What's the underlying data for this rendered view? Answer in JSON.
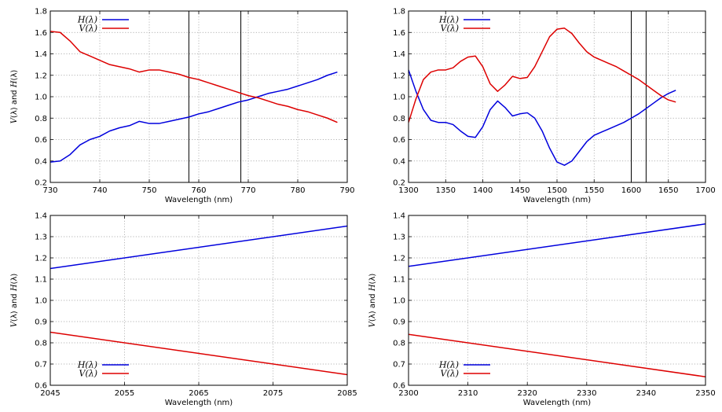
{
  "chart_data": [
    {
      "type": "line",
      "xlabel": "Wavelength (nm)",
      "ylabel": "V(λ) and H(λ)",
      "xlim": [
        730,
        790
      ],
      "ylim": [
        0.2,
        1.8
      ],
      "xticks": [
        "730",
        "740",
        "750",
        "760",
        "770",
        "780",
        "790"
      ],
      "yticks": [
        "0.2",
        "0.4",
        "0.6",
        "0.8",
        "1.0",
        "1.2",
        "1.4",
        "1.6",
        "1.8"
      ],
      "grid": true,
      "legend_position": "top-left",
      "vertical_lines": [
        758,
        768.5
      ],
      "series": [
        {
          "name": "H(λ)",
          "color": "#0000dd",
          "x": [
            730,
            732,
            734,
            736,
            738,
            740,
            742,
            744,
            746,
            748,
            750,
            752,
            754,
            756,
            758,
            760,
            762,
            764,
            766,
            768,
            770,
            772,
            774,
            776,
            778,
            780,
            782,
            784,
            786,
            788
          ],
          "y": [
            0.39,
            0.4,
            0.46,
            0.55,
            0.6,
            0.63,
            0.68,
            0.71,
            0.73,
            0.77,
            0.75,
            0.75,
            0.77,
            0.79,
            0.81,
            0.84,
            0.86,
            0.89,
            0.92,
            0.95,
            0.97,
            1.0,
            1.03,
            1.05,
            1.07,
            1.1,
            1.13,
            1.16,
            1.2,
            1.23
          ]
        },
        {
          "name": "V(λ)",
          "color": "#dd0000",
          "x": [
            730,
            732,
            734,
            736,
            738,
            740,
            742,
            744,
            746,
            748,
            750,
            752,
            754,
            756,
            758,
            760,
            762,
            764,
            766,
            768,
            770,
            772,
            774,
            776,
            778,
            780,
            782,
            784,
            786,
            788
          ],
          "y": [
            1.61,
            1.6,
            1.52,
            1.42,
            1.38,
            1.34,
            1.3,
            1.28,
            1.26,
            1.23,
            1.25,
            1.25,
            1.23,
            1.21,
            1.18,
            1.16,
            1.13,
            1.1,
            1.07,
            1.04,
            1.01,
            0.99,
            0.96,
            0.93,
            0.91,
            0.88,
            0.86,
            0.83,
            0.8,
            0.76
          ]
        }
      ]
    },
    {
      "type": "line",
      "xlabel": "Wavelength (nm)",
      "ylabel": "",
      "xlim": [
        1300,
        1700
      ],
      "ylim": [
        0.2,
        1.8
      ],
      "xticks": [
        "1300",
        "1350",
        "1400",
        "1450",
        "1500",
        "1550",
        "1600",
        "1650",
        "1700"
      ],
      "yticks": [
        "0.2",
        "0.4",
        "0.6",
        "0.8",
        "1.0",
        "1.2",
        "1.4",
        "1.6",
        "1.8"
      ],
      "grid": true,
      "legend_position": "top-left",
      "vertical_lines": [
        1600,
        1620
      ],
      "series": [
        {
          "name": "H(λ)",
          "color": "#0000dd",
          "x": [
            1300,
            1310,
            1320,
            1330,
            1340,
            1350,
            1360,
            1370,
            1380,
            1390,
            1400,
            1410,
            1420,
            1430,
            1440,
            1450,
            1460,
            1470,
            1480,
            1490,
            1500,
            1510,
            1520,
            1530,
            1540,
            1550,
            1560,
            1570,
            1580,
            1590,
            1600,
            1610,
            1620,
            1630,
            1640,
            1650,
            1660
          ],
          "y": [
            1.25,
            1.05,
            0.88,
            0.78,
            0.76,
            0.76,
            0.74,
            0.68,
            0.63,
            0.62,
            0.72,
            0.88,
            0.96,
            0.9,
            0.82,
            0.84,
            0.85,
            0.8,
            0.68,
            0.52,
            0.39,
            0.36,
            0.4,
            0.49,
            0.58,
            0.64,
            0.67,
            0.7,
            0.73,
            0.76,
            0.8,
            0.84,
            0.89,
            0.94,
            0.99,
            1.03,
            1.06
          ]
        },
        {
          "name": "V(λ)",
          "color": "#dd0000",
          "x": [
            1300,
            1310,
            1320,
            1330,
            1340,
            1350,
            1360,
            1370,
            1380,
            1390,
            1400,
            1410,
            1420,
            1430,
            1440,
            1450,
            1460,
            1470,
            1480,
            1490,
            1500,
            1510,
            1520,
            1530,
            1540,
            1550,
            1560,
            1570,
            1580,
            1590,
            1600,
            1610,
            1620,
            1630,
            1640,
            1650,
            1660
          ],
          "y": [
            0.76,
            0.98,
            1.16,
            1.23,
            1.25,
            1.25,
            1.27,
            1.33,
            1.37,
            1.38,
            1.28,
            1.12,
            1.05,
            1.11,
            1.19,
            1.17,
            1.18,
            1.28,
            1.42,
            1.56,
            1.63,
            1.64,
            1.59,
            1.5,
            1.42,
            1.37,
            1.34,
            1.31,
            1.28,
            1.24,
            1.2,
            1.16,
            1.11,
            1.06,
            1.01,
            0.97,
            0.95
          ]
        }
      ]
    },
    {
      "type": "line",
      "xlabel": "Wavelength (nm)",
      "ylabel": "V(λ) and H(λ)",
      "xlim": [
        2045,
        2085
      ],
      "ylim": [
        0.6,
        1.4
      ],
      "xticks": [
        "2045",
        "2055",
        "2065",
        "2075",
        "2085"
      ],
      "yticks": [
        "0.6",
        "0.7",
        "0.8",
        "0.9",
        "1.0",
        "1.1",
        "1.2",
        "1.3",
        "1.4"
      ],
      "grid": true,
      "legend_position": "bottom-left",
      "vertical_lines": [],
      "series": [
        {
          "name": "H(λ)",
          "color": "#0000dd",
          "x": [
            2045,
            2085
          ],
          "y": [
            1.15,
            1.35
          ]
        },
        {
          "name": "V(λ)",
          "color": "#dd0000",
          "x": [
            2045,
            2085
          ],
          "y": [
            0.85,
            0.65
          ]
        }
      ]
    },
    {
      "type": "line",
      "xlabel": "Wavelength (nm)",
      "ylabel": "V(λ) and H(λ)",
      "xlim": [
        2300,
        2350
      ],
      "ylim": [
        0.6,
        1.4
      ],
      "xticks": [
        "2300",
        "2310",
        "2320",
        "2330",
        "2340",
        "2350"
      ],
      "yticks": [
        "0.6",
        "0.7",
        "0.8",
        "0.9",
        "1.0",
        "1.1",
        "1.2",
        "1.3",
        "1.4"
      ],
      "grid": true,
      "legend_position": "bottom-left",
      "vertical_lines": [],
      "series": [
        {
          "name": "H(λ)",
          "color": "#0000dd",
          "x": [
            2300,
            2350
          ],
          "y": [
            1.16,
            1.36
          ]
        },
        {
          "name": "V(λ)",
          "color": "#dd0000",
          "x": [
            2300,
            2350
          ],
          "y": [
            0.84,
            0.64
          ]
        }
      ]
    }
  ]
}
